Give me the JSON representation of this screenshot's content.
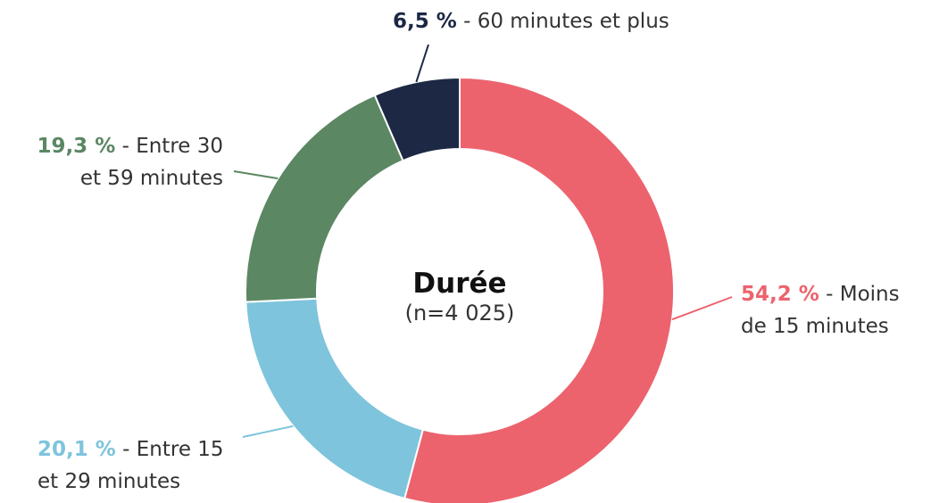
{
  "chart_data": {
    "type": "pie",
    "categories": [
      "Moins de 15 minutes",
      "Entre 15 et 29 minutes",
      "Entre 30 et 59 minutes",
      "60 minutes et plus"
    ],
    "values": [
      54.2,
      20.1,
      19.3,
      6.5
    ],
    "value_labels": [
      "54,2 %",
      "20,1 %",
      "19,3 %",
      "6,5 %"
    ],
    "label_separator": "-",
    "colors": [
      "#ec636e",
      "#7ec4dc",
      "#5b8763",
      "#1c2844"
    ],
    "center_title": "Durée",
    "center_subtitle": "(n=4 025)"
  }
}
